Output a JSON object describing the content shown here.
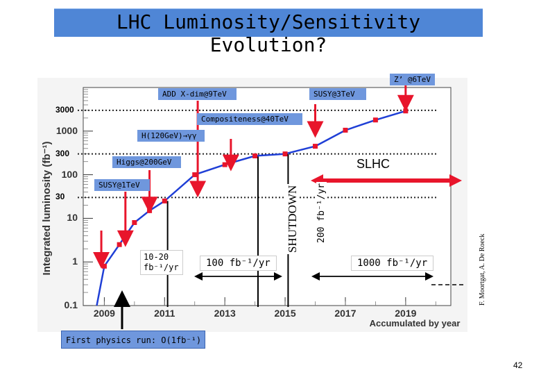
{
  "title": "LHC Luminosity/Sensitivity Evolution?",
  "page_number": "42",
  "credit": "F. Moortgat, A. De Roeck",
  "first_physics": "First physics run: O(1fb⁻¹)",
  "shutdown_label": "SHUTDOWN",
  "slhc_label": "SLHC",
  "rates": {
    "early": "10-20 fb⁻¹/yr",
    "r100": "100 fb⁻¹/yr",
    "r200": "200 fb⁻¹/yr",
    "r1000": "1000 fb⁻¹/yr"
  },
  "annotations": {
    "zprime": "Z’ @6TeV",
    "add": "ADD X-dim@9TeV",
    "susy3": "SUSY@3TeV",
    "compositeness": "Compositeness@40TeV",
    "higgs_gg": "H(120GeV)→γγ",
    "higgs200": "Higgs@200GeV",
    "susy1": "SUSY@1TeV"
  },
  "colors": {
    "marker": "#e8152b",
    "curve": "#1f3fd6",
    "label_bg": "#6f97dd",
    "title_bg": "#4f86d6",
    "arrow": "#e8152b"
  },
  "chart_data": {
    "type": "line",
    "title": "",
    "xlabel": "Accumulated by year",
    "ylabel": "Integrated luminosity (fb⁻¹)",
    "yscale": "log",
    "xlim": [
      2008.3,
      2020.5
    ],
    "ylim": [
      0.1,
      10000
    ],
    "x_ticks": [
      "2009",
      "2011",
      "2013",
      "2015",
      "2017",
      "2019"
    ],
    "y_ticks": [
      "0.1",
      "1",
      "10",
      "100",
      "1000"
    ],
    "extra_y_labels": [
      "3000",
      "300",
      "30"
    ],
    "series": [
      {
        "name": "Integrated luminosity",
        "points": [
          [
            2009.0,
            0.8
          ],
          [
            2009.5,
            2.5
          ],
          [
            2010.0,
            8
          ],
          [
            2010.5,
            15
          ],
          [
            2011.0,
            25
          ],
          [
            2012.0,
            100
          ],
          [
            2013.0,
            170
          ],
          [
            2014.0,
            270
          ],
          [
            2015.0,
            300
          ],
          [
            2016.0,
            450
          ],
          [
            2017.0,
            1050
          ],
          [
            2018.0,
            1800
          ],
          [
            2019.0,
            2900
          ]
        ]
      }
    ]
  }
}
